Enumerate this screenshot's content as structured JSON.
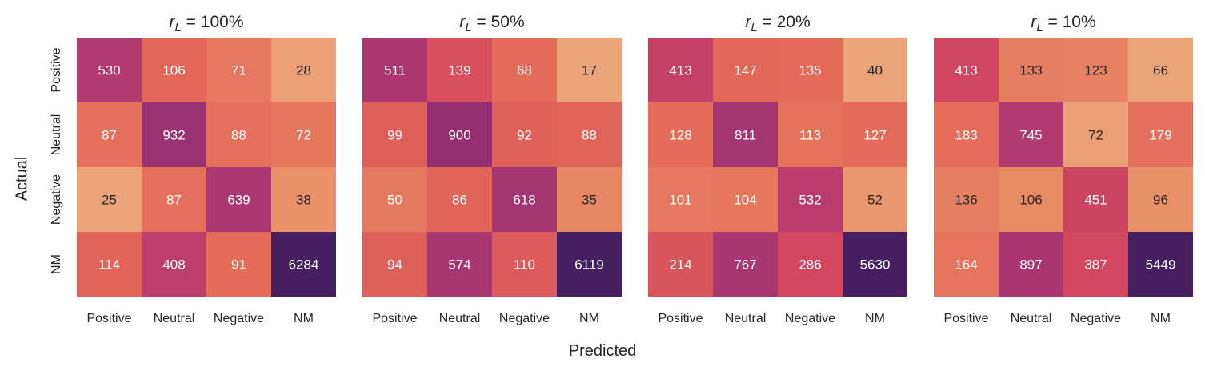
{
  "figure": {
    "ylabel": "Actual",
    "xlabel": "Predicted"
  },
  "chart_data": [
    {
      "type": "heatmap",
      "title_var": "r",
      "title_sub": "L",
      "title_rest": " = 100%",
      "x_categories": [
        "Positive",
        "Neutral",
        "Negative",
        "NM"
      ],
      "y_categories": [
        "Positive",
        "Neutral",
        "Negative",
        "NM"
      ],
      "values": [
        [
          530,
          106,
          71,
          28
        ],
        [
          87,
          932,
          88,
          72
        ],
        [
          25,
          87,
          639,
          38
        ],
        [
          114,
          408,
          91,
          6284
        ]
      ]
    },
    {
      "type": "heatmap",
      "title_var": "r",
      "title_sub": "L",
      "title_rest": " = 50%",
      "x_categories": [
        "Positive",
        "Neutral",
        "Negative",
        "NM"
      ],
      "y_categories": [
        "Positive",
        "Neutral",
        "Negative",
        "NM"
      ],
      "values": [
        [
          511,
          139,
          68,
          17
        ],
        [
          99,
          900,
          92,
          88
        ],
        [
          50,
          86,
          618,
          35
        ],
        [
          94,
          574,
          110,
          6119
        ]
      ]
    },
    {
      "type": "heatmap",
      "title_var": "r",
      "title_sub": "L",
      "title_rest": " = 20%",
      "x_categories": [
        "Positive",
        "Neutral",
        "Negative",
        "NM"
      ],
      "y_categories": [
        "Positive",
        "Neutral",
        "Negative",
        "NM"
      ],
      "values": [
        [
          413,
          147,
          135,
          40
        ],
        [
          128,
          811,
          113,
          127
        ],
        [
          101,
          104,
          532,
          52
        ],
        [
          214,
          767,
          286,
          5630
        ]
      ]
    },
    {
      "type": "heatmap",
      "title_var": "r",
      "title_sub": "L",
      "title_rest": " = 10%",
      "x_categories": [
        "Positive",
        "Neutral",
        "Negative",
        "NM"
      ],
      "y_categories": [
        "Positive",
        "Neutral",
        "Negative",
        "NM"
      ],
      "values": [
        [
          413,
          133,
          123,
          66
        ],
        [
          183,
          745,
          72,
          179
        ],
        [
          136,
          106,
          451,
          96
        ],
        [
          164,
          897,
          387,
          5449
        ]
      ]
    }
  ],
  "colormap": {
    "name": "flare",
    "stops": [
      "#edb081",
      "#e88d66",
      "#e36a58",
      "#d3485f",
      "#b33a6f",
      "#8e2d74",
      "#67266f",
      "#451f5f"
    ]
  }
}
